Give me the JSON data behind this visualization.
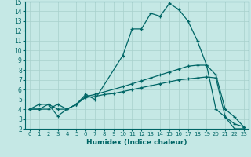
{
  "xlabel": "Humidex (Indice chaleur)",
  "bg_color": "#c5e8e5",
  "grid_color": "#a8d0cc",
  "line_color": "#006666",
  "xlim": [
    -0.5,
    23.5
  ],
  "ylim": [
    2,
    15
  ],
  "xticks": [
    0,
    1,
    2,
    3,
    4,
    5,
    6,
    7,
    8,
    9,
    10,
    11,
    12,
    13,
    14,
    15,
    16,
    17,
    18,
    19,
    20,
    21,
    22,
    23
  ],
  "yticks": [
    2,
    3,
    4,
    5,
    6,
    7,
    8,
    9,
    10,
    11,
    12,
    13,
    14,
    15
  ],
  "line1_x": [
    0,
    1,
    2,
    3,
    4,
    5,
    6,
    7,
    10,
    11,
    12,
    13,
    14,
    15,
    16,
    17,
    18,
    19,
    20,
    21,
    22,
    23
  ],
  "line1_y": [
    4,
    4.5,
    4.5,
    4,
    4,
    4.5,
    5.5,
    5,
    9.5,
    12.2,
    12.2,
    13.8,
    13.5,
    14.8,
    14.2,
    13,
    11,
    8.5,
    4,
    3.2,
    2,
    2
  ],
  "line2_x": [
    0,
    1,
    2,
    3,
    4,
    5,
    6,
    7,
    10,
    11,
    12,
    13,
    14,
    15,
    16,
    17,
    18,
    19,
    20,
    21,
    22,
    23
  ],
  "line2_y": [
    4,
    4,
    4.5,
    3.3,
    4,
    4.5,
    5.3,
    5.5,
    6.3,
    6.6,
    6.9,
    7.2,
    7.5,
    7.8,
    8.1,
    8.4,
    8.5,
    8.5,
    7.5,
    4,
    3.2,
    2.2
  ],
  "line3_x": [
    0,
    1,
    2,
    3,
    4,
    5,
    6,
    7,
    8,
    9,
    10,
    11,
    12,
    13,
    14,
    15,
    16,
    17,
    18,
    19,
    20,
    21,
    22,
    23
  ],
  "line3_y": [
    4,
    4,
    4,
    4.5,
    4,
    4.5,
    5.2,
    5.3,
    5.5,
    5.6,
    5.8,
    6.0,
    6.2,
    6.4,
    6.6,
    6.8,
    7.0,
    7.1,
    7.2,
    7.3,
    7.2,
    3.2,
    2.5,
    2.2
  ]
}
